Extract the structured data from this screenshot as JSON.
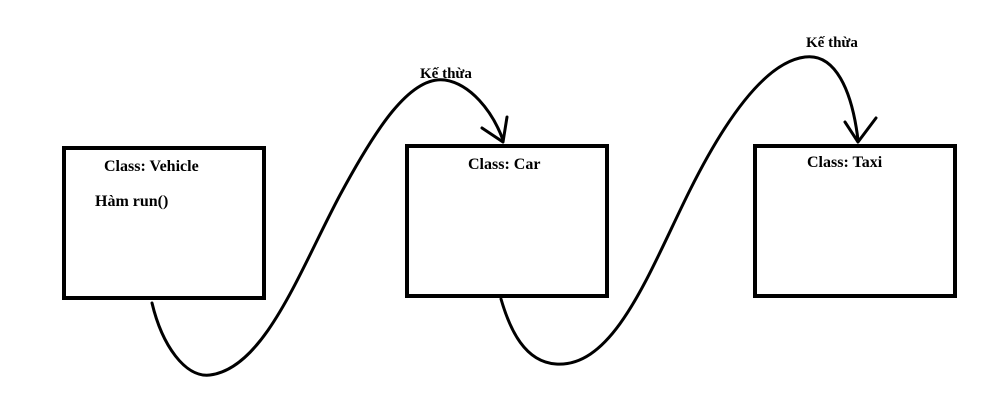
{
  "diagram": {
    "classes": [
      {
        "title": "Class: Vehicle",
        "method": "Hàm run()"
      },
      {
        "title": "Class: Car"
      },
      {
        "title": "Class: Taxi"
      }
    ],
    "inheritance": [
      {
        "label": "Kế thừa",
        "from": "Class: Vehicle",
        "to": "Class: Car"
      },
      {
        "label": "Kế thừa",
        "from": "Class: Car",
        "to": "Class: Taxi"
      }
    ]
  }
}
